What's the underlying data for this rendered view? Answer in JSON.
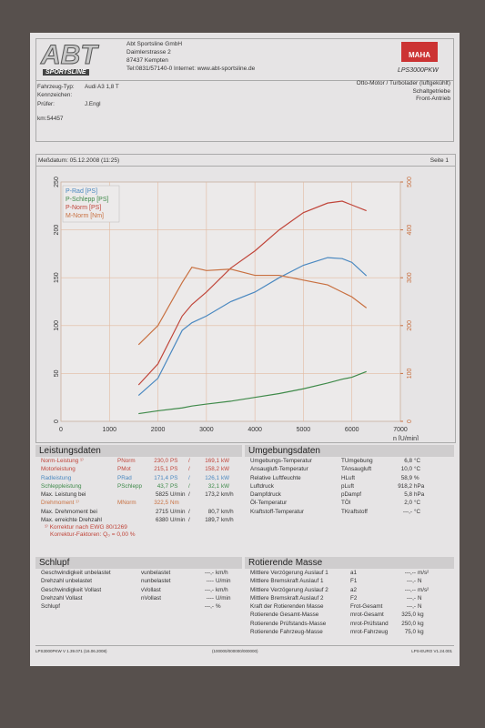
{
  "header": {
    "logo": "ABT",
    "logo_sub": "SPORTSLINE",
    "company": [
      "Abt Sportsline GmbH",
      "Daimlerstrasse 2",
      "87437 Kempten",
      "Tel:0831/57140-0 Internet: www.abt-sportsline.de"
    ],
    "brand": "MAHA",
    "model": "LPS3000PKW"
  },
  "vehicle": {
    "rows": [
      {
        "label": "Fahrzeug-Typ:",
        "value": "Audi A3 1,8 T"
      },
      {
        "label": "Kennzeichen:"
      },
      {
        "label": "Prüfer:",
        "value": "J.Engl"
      }
    ],
    "engine": [
      "Otto-Motor / Turbolader (luftgekühlt)",
      "Schaltgetriebe",
      "Front-Antrieb"
    ],
    "km": "km:54457"
  },
  "date": "Meßdatum: 05.12.2008 (11:25)",
  "page": "Seite 1",
  "chart": {
    "type": "line",
    "x": [
      1600,
      2000,
      2500,
      2700,
      3000,
      3500,
      4000,
      4500,
      5000,
      5500,
      5800,
      6000,
      6300
    ],
    "series": [
      {
        "name": "P-Rad [PS]",
        "color": "#4a88c0",
        "values": [
          27,
          45,
          95,
          103,
          110,
          125,
          135,
          150,
          163,
          171,
          170,
          166,
          152
        ]
      },
      {
        "name": "P-Schlepp [PS]",
        "color": "#3f8a4a",
        "values": [
          8,
          11,
          14,
          16,
          18,
          21,
          25,
          29,
          34,
          40,
          44,
          46,
          52
        ]
      },
      {
        "name": "P-Norm [PS]",
        "color": "#c0453a",
        "values": [
          38,
          60,
          110,
          122,
          135,
          160,
          178,
          200,
          218,
          228,
          230,
          226,
          220
        ]
      },
      {
        "name": "M-Norm [Nm]",
        "color": "#c87040",
        "axis": "y2",
        "values": [
          160,
          200,
          290,
          322,
          315,
          318,
          305,
          305,
          295,
          285,
          270,
          260,
          237
        ]
      }
    ],
    "xlim": [
      0,
      7000
    ],
    "xticks": [
      0,
      1000,
      2000,
      3000,
      4000,
      5000,
      6000,
      7000
    ],
    "ylim": [
      0,
      250
    ],
    "yticks": [
      0,
      50,
      100,
      150,
      200,
      250
    ],
    "y2lim": [
      0,
      500
    ],
    "y2ticks": [
      0,
      100,
      200,
      300,
      400,
      500
    ],
    "xlabel": "n [U/min]",
    "grid": true
  },
  "leistung": {
    "title": "Leistungsdaten",
    "rows": [
      {
        "label": "Norm-Leistung ¹⁾",
        "symbol": "PNorm",
        "value": "230,0",
        "unit": "PS",
        "sep": "/",
        "value2": "169,1",
        "unit2": "kW",
        "color": "#c0453a"
      },
      {
        "label": "Motorleistung",
        "symbol": "PMot",
        "value": "215,1",
        "unit": "PS",
        "sep": "/",
        "value2": "158,2",
        "unit2": "kW",
        "color": "#c0453a"
      },
      {
        "label": "Radleistung",
        "symbol": "PRad",
        "value": "171,4",
        "unit": "PS",
        "sep": "/",
        "value2": "126,1",
        "unit2": "kW",
        "color": "#4a88c0"
      },
      {
        "label": "Schleppleistung",
        "symbol": "PSchlepp",
        "value": "43,7",
        "unit": "PS",
        "sep": "/",
        "value2": "32,1",
        "unit2": "kW",
        "color": "#3f8a4a"
      },
      {
        "label": "Max. Leistung bei",
        "value": "5825",
        "unit": "U/min",
        "sep": "/",
        "value2": "173,2",
        "unit2": "km/h"
      },
      {
        "label": "Drehmoment ¹⁾",
        "symbol": "MNorm",
        "value": "322,5",
        "unit": "Nm",
        "color": "#c87040"
      },
      {
        "label": "Max. Drehmoment bei",
        "value": "2715",
        "unit": "U/min",
        "sep": "/",
        "value2": "80,7",
        "unit2": "km/h"
      },
      {
        "label": "Max. erreichte Drehzahl",
        "value": "6380",
        "unit": "U/min",
        "sep": "/",
        "value2": "189,7",
        "unit2": "km/h"
      }
    ],
    "notes": [
      "¹⁾ Korrektur nach EWG 80/1269",
      "Korrektur-Faktoren: Q₀ = 0,00 %"
    ]
  },
  "umgebung": {
    "title": "Umgebungsdaten",
    "rows": [
      {
        "label": "Umgebungs-Temperatur",
        "symbol": "TUmgebung",
        "value": "6,8",
        "unit": "°C"
      },
      {
        "label": "Ansaugluft-Temperatur",
        "symbol": "TAnsaugluft",
        "value": "10,0",
        "unit": "°C"
      },
      {
        "label": "Relative Luftfeuchte",
        "symbol": "HLuft",
        "value": "58,9",
        "unit": "%"
      },
      {
        "label": "Luftdruck",
        "symbol": "pLuft",
        "value": "918,2",
        "unit": "hPa"
      },
      {
        "label": "Dampfdruck",
        "symbol": "pDampf",
        "value": "5,8",
        "unit": "hPa"
      },
      {
        "label": "Öl-Temperatur",
        "symbol": "TÖl",
        "value": "2,0",
        "unit": "°C"
      },
      {
        "label": "Kraftstoff-Temperatur",
        "symbol": "TKraftstoff",
        "value": "---,-",
        "unit": "°C"
      }
    ]
  },
  "schlupf": {
    "title": "Schlupf",
    "rows": [
      {
        "label": "Geschwindigkeit unbelastet",
        "symbol": "vunbelastet",
        "value": "---,-",
        "unit": "km/h"
      },
      {
        "label": "Drehzahl unbelastet",
        "symbol": "nunbelastet",
        "value": "----",
        "unit": "U/min"
      },
      {
        "label": "Geschwindigkeit Vollast",
        "symbol": "vVollast",
        "value": "---,-",
        "unit": "km/h"
      },
      {
        "label": "Drehzahl Vollast",
        "symbol": "nVollast",
        "value": "----",
        "unit": "U/min"
      },
      {
        "label": "Schlupf",
        "value": "---,-",
        "unit": "%"
      }
    ]
  },
  "masse": {
    "title": "Rotierende Masse",
    "rows": [
      {
        "label": "Mittlere Verzögerung Auslauf 1",
        "symbol": "a1",
        "value": "---,--",
        "unit": "m/s²"
      },
      {
        "label": "Mittlere Bremskraft Auslauf 1",
        "symbol": "F1",
        "value": "---,-",
        "unit": "N"
      },
      {
        "label": "Mittlere Verzögerung Auslauf 2",
        "symbol": "a2",
        "value": "---,--",
        "unit": "m/s²"
      },
      {
        "label": "Mittlere Bremskraft Auslauf 2",
        "symbol": "F2",
        "value": "---,-",
        "unit": "N"
      },
      {
        "label": "Kraft der Rotierenden Masse",
        "symbol": "Frot-Gesamt",
        "value": "---,-",
        "unit": "N"
      },
      {
        "label": "Rotierende Gesamt-Masse",
        "symbol": "mrot-Gesamt",
        "value": "325,0",
        "unit": "kg"
      },
      {
        "label": "Rotierende Prüfstands-Masse",
        "symbol": "mrot-Prüfstand",
        "value": "250,0",
        "unit": "kg"
      },
      {
        "label": "Rotierende Fahrzeug-Masse",
        "symbol": "mrot-Fahrzeug",
        "value": "75,0",
        "unit": "kg"
      }
    ]
  },
  "footer": [
    "LPS3000PKW V 1.39.071 (16.06.2008)",
    "(100000/000000/000000)",
    "LPS-EURO V1.24.001"
  ]
}
